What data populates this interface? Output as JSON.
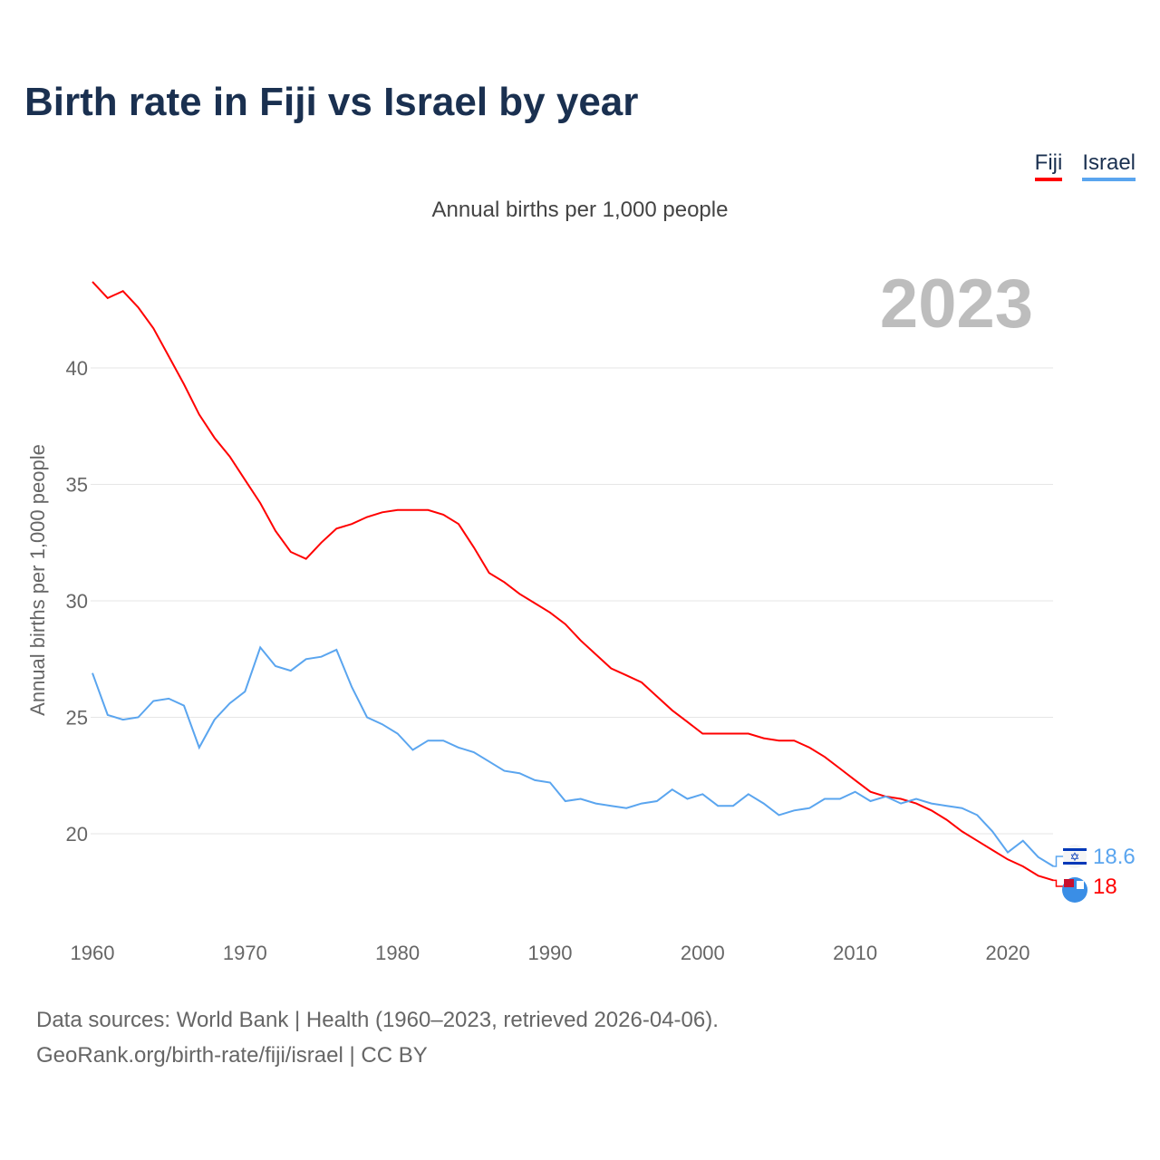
{
  "title": "Birth rate in Fiji vs Israel by year",
  "year_label": "2023",
  "footer": {
    "line1": "Data sources: World Bank | Health (1960–2023, retrieved 2026-04-06).",
    "line2": "GeoRank.org/birth-rate/fiji/israel | CC BY"
  },
  "chart_data": {
    "type": "line",
    "title": "Annual births per 1,000 people",
    "xlabel": "",
    "ylabel": "Annual births per 1,000 people",
    "xlim": [
      1960,
      2023
    ],
    "ylim": [
      16,
      44
    ],
    "yticks": [
      20,
      25,
      30,
      35,
      40
    ],
    "xticks": [
      1960,
      1970,
      1980,
      1990,
      2000,
      2010,
      2020
    ],
    "grid": true,
    "legend": "top-right",
    "x_start": 1960,
    "series": [
      {
        "name": "Fiji",
        "color": "#ff0000",
        "end_label": "18",
        "values": [
          43.7,
          43.0,
          43.3,
          42.6,
          41.7,
          40.5,
          39.3,
          38.0,
          37.0,
          36.2,
          35.2,
          34.2,
          33.0,
          32.1,
          31.8,
          32.5,
          33.1,
          33.3,
          33.6,
          33.8,
          33.9,
          33.9,
          33.9,
          33.7,
          33.3,
          32.3,
          31.2,
          30.8,
          30.3,
          29.9,
          29.5,
          29.0,
          28.3,
          27.7,
          27.1,
          26.8,
          26.5,
          25.9,
          25.3,
          24.8,
          24.3,
          24.3,
          24.3,
          24.3,
          24.1,
          24.0,
          24.0,
          23.7,
          23.3,
          22.8,
          22.3,
          21.8,
          21.6,
          21.5,
          21.3,
          21.0,
          20.6,
          20.1,
          19.7,
          19.3,
          18.9,
          18.6,
          18.2,
          18.0
        ]
      },
      {
        "name": "Israel",
        "color": "#5aa5ef",
        "end_label": "18.6",
        "values": [
          26.9,
          25.1,
          24.9,
          25.0,
          25.7,
          25.8,
          25.5,
          23.7,
          24.9,
          25.6,
          26.1,
          28.0,
          27.2,
          27.0,
          27.5,
          27.6,
          27.9,
          26.3,
          25.0,
          24.7,
          24.3,
          23.6,
          24.0,
          24.0,
          23.7,
          23.5,
          23.1,
          22.7,
          22.6,
          22.3,
          22.2,
          21.4,
          21.5,
          21.3,
          21.2,
          21.1,
          21.3,
          21.4,
          21.9,
          21.5,
          21.7,
          21.2,
          21.2,
          21.7,
          21.3,
          20.8,
          21.0,
          21.1,
          21.5,
          21.5,
          21.8,
          21.4,
          21.6,
          21.3,
          21.5,
          21.3,
          21.2,
          21.1,
          20.8,
          20.1,
          19.2,
          19.7,
          19.0,
          18.6
        ]
      }
    ]
  }
}
